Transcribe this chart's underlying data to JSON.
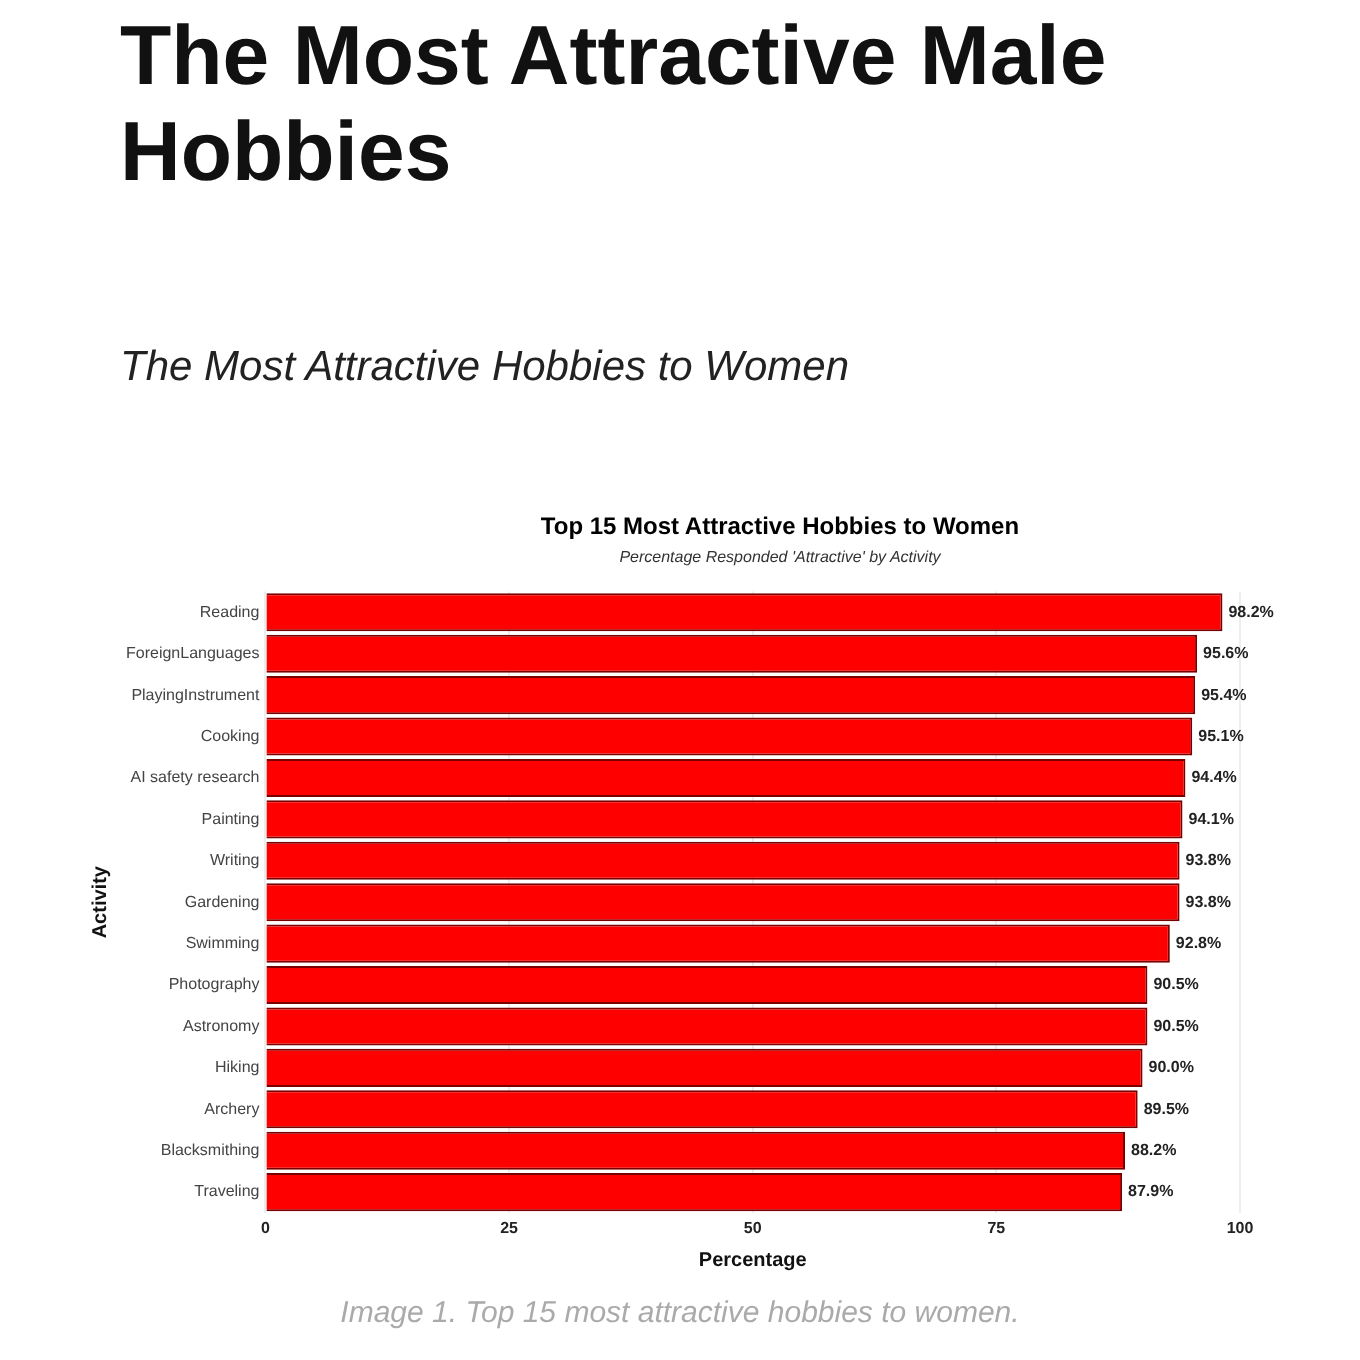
{
  "chart_data": {
    "type": "bar",
    "orientation": "horizontal",
    "title": "The Most Attractive Male Hobbies",
    "subtitle": "The Most Attractive Hobbies to Women",
    "annotations": [
      "Top 15 Most Attractive Hobbies to Women",
      "Percentage Responded 'Attractive' by Activity",
      "Image 1. Top 15 most attractive hobbies to women."
    ],
    "xlabel": "Percentage",
    "ylabel": "Activity",
    "categories": [
      "Reading",
      "ForeignLanguages",
      "PlayingInstrument",
      "Cooking",
      "AI safety research",
      "Painting",
      "Writing",
      "Gardening",
      "Swimming",
      "Photography",
      "Astronomy",
      "Hiking",
      "Archery",
      "Blacksmithing",
      "Traveling"
    ],
    "values": [
      98.2,
      95.6,
      95.4,
      95.1,
      94.4,
      94.1,
      93.8,
      93.8,
      92.8,
      90.5,
      90.5,
      90.0,
      89.5,
      88.2,
      87.9
    ],
    "value_labels": [
      "98.2%",
      "95.6%",
      "95.4%",
      "95.1%",
      "94.4%",
      "94.1%",
      "93.8%",
      "93.8%",
      "92.8%",
      "90.5%",
      "90.5%",
      "90.0%",
      "89.5%",
      "88.2%",
      "87.9%"
    ],
    "color": "#ff0000",
    "xlim": [
      0,
      100
    ],
    "xticks": [
      0,
      25,
      50,
      75,
      100
    ],
    "grid": "x",
    "legend": false
  }
}
